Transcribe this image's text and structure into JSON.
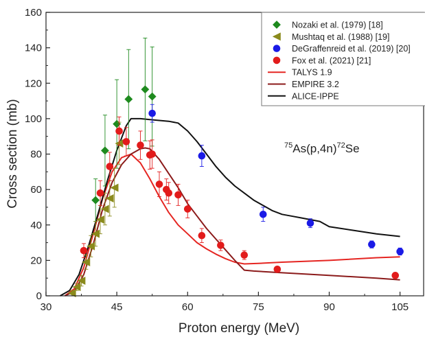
{
  "chart_data": {
    "type": "scatter",
    "title": "",
    "xlabel": "Proton energy (MeV)",
    "ylabel": "Cross section (mb)",
    "xlim": [
      30,
      110
    ],
    "ylim": [
      0,
      160
    ],
    "x_ticks": [
      30,
      45,
      60,
      75,
      90,
      105
    ],
    "y_ticks": [
      0,
      20,
      40,
      60,
      80,
      100,
      120,
      140,
      160
    ],
    "grid": false,
    "legend_position": "top-right",
    "annotation": {
      "sup1": "75",
      "main1": "As(p,4n)",
      "sup2": "72",
      "main2": "Se"
    },
    "series": [
      {
        "name": "Nozaki et al. (1979) [18]",
        "kind": "points",
        "marker": "diamond",
        "color": "#1e8a1e",
        "points": [
          {
            "x": 40.5,
            "y": 54,
            "err": 12
          },
          {
            "x": 42.5,
            "y": 82,
            "err": 20
          },
          {
            "x": 45,
            "y": 97,
            "err": 25
          },
          {
            "x": 47.5,
            "y": 111,
            "err": 28
          },
          {
            "x": 51,
            "y": 116.5,
            "err": 29
          },
          {
            "x": 52.5,
            "y": 112.5,
            "err": 28
          }
        ]
      },
      {
        "name": "Mushtaq et al. (1988) [19]",
        "kind": "points",
        "marker": "triangle-left",
        "color": "#8a8a1c",
        "points": [
          {
            "x": 35.5,
            "y": 1.5,
            "err": 1.5
          },
          {
            "x": 36.5,
            "y": 5,
            "err": 2
          },
          {
            "x": 37.5,
            "y": 8.5,
            "err": 3
          },
          {
            "x": 38.5,
            "y": 19,
            "err": 4
          },
          {
            "x": 39.5,
            "y": 28,
            "err": 6
          },
          {
            "x": 40.5,
            "y": 35,
            "err": 7
          },
          {
            "x": 41.5,
            "y": 43,
            "err": 8
          },
          {
            "x": 42.5,
            "y": 49,
            "err": 9
          },
          {
            "x": 43.5,
            "y": 55,
            "err": 10
          },
          {
            "x": 44.5,
            "y": 61,
            "err": 11
          },
          {
            "x": 45.5,
            "y": 86,
            "err": 12
          }
        ]
      },
      {
        "name": "DeGraffenreid et al. (2019) [20]",
        "kind": "points",
        "marker": "circle",
        "color": "#1a1ae6",
        "points": [
          {
            "x": 52.5,
            "y": 103,
            "err": 5
          },
          {
            "x": 63,
            "y": 79,
            "err": 6
          },
          {
            "x": 76,
            "y": 46,
            "err": 4
          },
          {
            "x": 86,
            "y": 41,
            "err": 2.5
          },
          {
            "x": 99,
            "y": 29,
            "err": 2
          },
          {
            "x": 105,
            "y": 25,
            "err": 2
          }
        ]
      },
      {
        "name": "Fox et al. (2021) [21]",
        "kind": "points",
        "marker": "circle",
        "color": "#e21b1b",
        "points": [
          {
            "x": 38,
            "y": 25.5,
            "err": 4
          },
          {
            "x": 41.5,
            "y": 58,
            "err": 7
          },
          {
            "x": 43.5,
            "y": 73,
            "err": 8
          },
          {
            "x": 45.5,
            "y": 93,
            "err": 8
          },
          {
            "x": 47,
            "y": 87,
            "err": 8
          },
          {
            "x": 50,
            "y": 85,
            "err": 8
          },
          {
            "x": 52,
            "y": 79.5,
            "err": 8
          },
          {
            "x": 52.5,
            "y": 80,
            "err": 8
          },
          {
            "x": 54,
            "y": 63,
            "err": 7
          },
          {
            "x": 55.5,
            "y": 60,
            "err": 6
          },
          {
            "x": 56,
            "y": 58,
            "err": 6
          },
          {
            "x": 58,
            "y": 57,
            "err": 6
          },
          {
            "x": 60,
            "y": 49,
            "err": 5
          },
          {
            "x": 63,
            "y": 34,
            "err": 4
          },
          {
            "x": 67,
            "y": 28.5,
            "err": 3
          },
          {
            "x": 72,
            "y": 23,
            "err": 2.5
          },
          {
            "x": 79,
            "y": 15,
            "err": 1.5
          },
          {
            "x": 104,
            "y": 11.5,
            "err": 1.5
          }
        ]
      },
      {
        "name": "TALYS 1.9",
        "kind": "line",
        "color": "#e52521",
        "x": [
          34,
          36,
          38,
          40,
          42,
          44,
          46,
          48,
          50,
          52,
          54,
          56,
          58,
          60,
          62,
          64,
          66,
          68,
          70,
          72,
          75,
          80,
          90,
          100,
          105
        ],
        "y": [
          0,
          4,
          16,
          35,
          55,
          70,
          78,
          80,
          75,
          66,
          56,
          47,
          40,
          35,
          30,
          26.5,
          23.5,
          21,
          19,
          18,
          18.3,
          19,
          20,
          21.5,
          22
        ]
      },
      {
        "name": "EMPIRE 3.2",
        "kind": "line",
        "color": "#8b1a1a",
        "x": [
          34,
          36,
          38,
          40,
          42,
          44,
          46,
          48,
          50,
          51,
          52,
          54,
          56,
          58,
          60,
          62,
          64,
          66,
          68,
          70,
          72,
          74,
          80,
          90,
          100,
          105
        ],
        "y": [
          0,
          2.5,
          12,
          29,
          49,
          64,
          74,
          80,
          83,
          83.5,
          83,
          77,
          69,
          61,
          52,
          45,
          38,
          32,
          26,
          20,
          14.5,
          14,
          13,
          11.5,
          10,
          9
        ]
      },
      {
        "name": "ALICE-IPPE",
        "kind": "line",
        "color": "#111111",
        "x": [
          33,
          35,
          37,
          39,
          41,
          43,
          45,
          47,
          48,
          50,
          52,
          54,
          56,
          58,
          60,
          62,
          64,
          66,
          68,
          70,
          72,
          74,
          76,
          78,
          80,
          82,
          84,
          86,
          88,
          90,
          95,
          100,
          105
        ],
        "y": [
          0,
          3,
          12,
          28,
          46,
          65,
          82,
          96,
          100,
          100,
          99.5,
          99,
          98.5,
          97.5,
          93,
          87,
          80,
          73,
          67,
          62,
          58,
          54,
          51,
          48,
          46,
          45,
          44,
          43,
          42,
          39,
          37,
          35,
          33.5
        ]
      }
    ]
  }
}
